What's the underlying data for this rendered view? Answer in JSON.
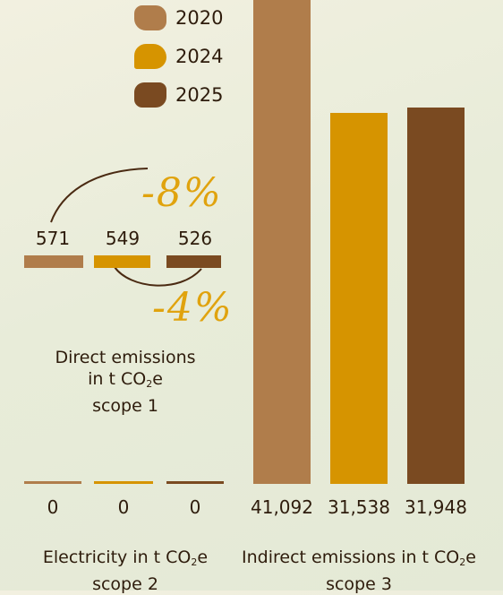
{
  "colors": {
    "c2020": "#b07d4b",
    "c2024": "#d69400",
    "c2025": "#7a4a21",
    "accent": "#e0a30e"
  },
  "legend": [
    {
      "label": "2020",
      "color": "#b07d4b"
    },
    {
      "label": "2024",
      "color": "#d69400"
    },
    {
      "label": "2025",
      "color": "#7a4a21"
    }
  ],
  "chart_data": [
    {
      "type": "bar",
      "categories": [
        "2020",
        "2024",
        "2025"
      ],
      "values": [
        571,
        549,
        526
      ],
      "value_labels": [
        "571",
        "549",
        "526"
      ],
      "caption": {
        "line1": "Direct emissions",
        "line2_pre": "in t CO",
        "line2_sub": "2",
        "line2_post": "e",
        "line3": "scope 1"
      },
      "annotations": [
        "-8%",
        "-4%"
      ]
    },
    {
      "type": "bar",
      "categories": [
        "2020",
        "2024",
        "2025"
      ],
      "values": [
        0,
        0,
        0
      ],
      "value_labels": [
        "0",
        "0",
        "0"
      ],
      "caption": {
        "line1_pre": "Electricity in t CO",
        "line1_sub": "2",
        "line1_post": "e",
        "line2": "scope 2"
      }
    },
    {
      "type": "bar",
      "categories": [
        "2020",
        "2024",
        "2025"
      ],
      "values": [
        41092,
        31538,
        31948
      ],
      "value_labels": [
        "41,092",
        "31,538",
        "31,948"
      ],
      "caption": {
        "line1_pre": "Indirect emissions in t CO",
        "line1_sub": "2",
        "line1_post": "e",
        "line2": "scope 3"
      }
    }
  ]
}
